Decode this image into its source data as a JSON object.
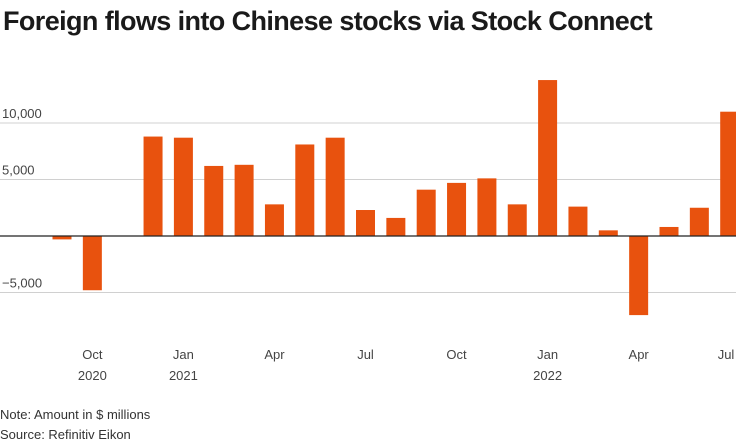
{
  "title": "Foreign flows into Chinese stocks via Stock Connect",
  "note": "Note: Amount in $ millions",
  "source": "Source: Refinitiv Eikon",
  "colors": {
    "bar": "#e8520e",
    "grid": "#d0d0d0",
    "zero": "#222222"
  },
  "chart_data": {
    "type": "bar",
    "title": "Foreign flows into Chinese stocks via Stock Connect",
    "xlabel": "",
    "ylabel": "",
    "ylim": [
      -8500,
      14500
    ],
    "grid": true,
    "y_ticks": [
      {
        "value": 10000,
        "label": "10,000"
      },
      {
        "value": 5000,
        "label": "5,000"
      },
      {
        "value": -5000,
        "label": "−5,000"
      }
    ],
    "categories": [
      "2020-09",
      "2020-10",
      "2020-11",
      "2020-12",
      "2021-01",
      "2021-02",
      "2021-03",
      "2021-04",
      "2021-05",
      "2021-06",
      "2021-07",
      "2021-08",
      "2021-09",
      "2021-10",
      "2021-11",
      "2021-12",
      "2022-01",
      "2022-02",
      "2022-03",
      "2022-04",
      "2022-05",
      "2022-06",
      "2022-07"
    ],
    "values": [
      -300,
      -4800,
      0,
      8800,
      8700,
      6200,
      6300,
      2800,
      8100,
      8700,
      2300,
      1600,
      4100,
      4700,
      5100,
      2800,
      13800,
      2600,
      500,
      -7000,
      800,
      2500,
      11000
    ],
    "x_ticks": [
      {
        "index": 1,
        "label": "Oct",
        "year": "2020"
      },
      {
        "index": 4,
        "label": "Jan",
        "year": "2021"
      },
      {
        "index": 7,
        "label": "Apr",
        "year": ""
      },
      {
        "index": 10,
        "label": "Jul",
        "year": ""
      },
      {
        "index": 13,
        "label": "Oct",
        "year": ""
      },
      {
        "index": 16,
        "label": "Jan",
        "year": "2022"
      },
      {
        "index": 19,
        "label": "Apr",
        "year": ""
      },
      {
        "index": 22,
        "label": "Jul",
        "year": ""
      }
    ]
  }
}
